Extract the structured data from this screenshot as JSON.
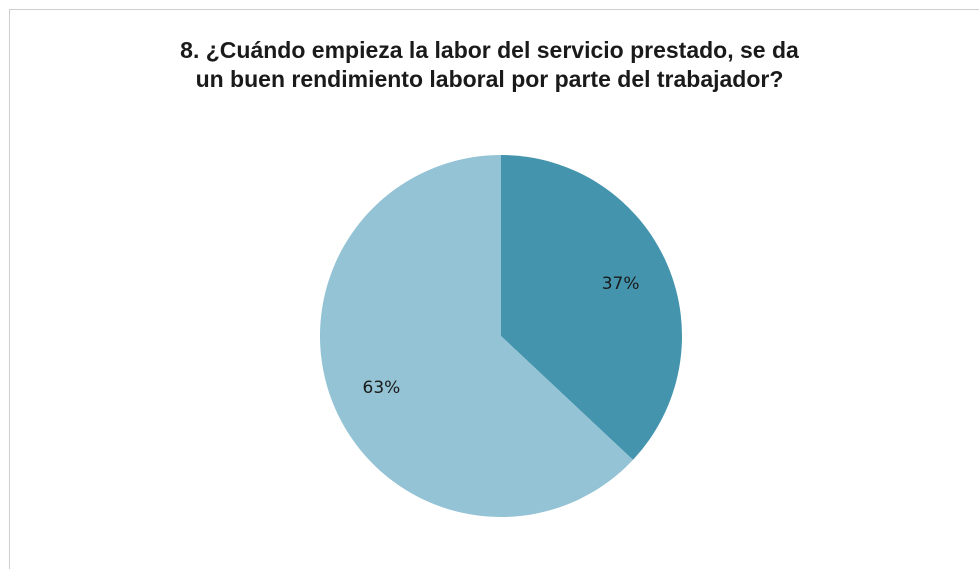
{
  "chart_data": {
    "type": "pie",
    "title_lines": [
      "8. ¿Cuándo empieza la labor del servicio prestado, se da",
      "un buen rendimiento laboral por parte del trabajador?"
    ],
    "slices": [
      {
        "value": 37,
        "label": "37%",
        "color": "#4494ae"
      },
      {
        "value": 63,
        "label": "63%",
        "color": "#93c3d4"
      }
    ],
    "start_angle_deg": 0,
    "direction": "clockwise",
    "legend": "none"
  }
}
